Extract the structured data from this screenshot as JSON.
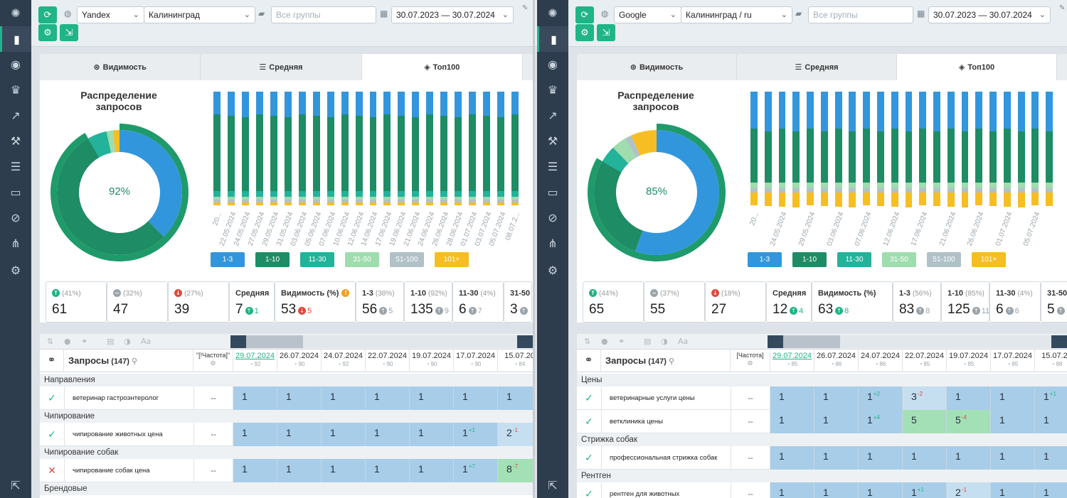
{
  "colors": {
    "c13": "#3296dc",
    "c110": "#1e8c64",
    "c1130": "#22b39a",
    "c3150": "#9fdcae",
    "c51100": "#b0c1c8",
    "c101": "#f6be22",
    "ring": "#1f9a6a"
  },
  "sidebar": {
    "icons": [
      "logo-icon",
      "chart-icon",
      "camera-icon",
      "trophy-icon",
      "trend-icon",
      "tools-icon",
      "list-icon",
      "inbox-icon",
      "satellite-icon",
      "sitemap-icon",
      "gear-icon",
      "export-icon"
    ]
  },
  "left": {
    "engine": "Yandex",
    "region": "Калининград",
    "groups_placeholder": "Все группы",
    "dates": "30.07.2023 — 30.07.2024",
    "tabs": [
      "Видимость",
      "Средняя",
      "Топ100"
    ],
    "donut_title": "Распределение запросов",
    "donut_pct": "92%",
    "legend": [
      "1-3",
      "1-10",
      "11-30",
      "31-50",
      "51-100",
      "101+"
    ],
    "chart_dates": [
      "20...",
      "22.05.2024",
      "24.05.2024",
      "27.05.2024",
      "29.05.2024",
      "31.05.2024",
      "03.06.2024",
      "05.06.2024",
      "07.06.2024",
      "10.06.2024",
      "12.06.2024",
      "14.06.2024",
      "17.06.2024",
      "19.06.2024",
      "21.06.2024",
      "24.06.2024",
      "26.06.2024",
      "28.06.2024",
      "01.07.2024",
      "03.07.2024",
      "05.07.2024",
      "08.07.2..."
    ],
    "stats": [
      {
        "label": "",
        "pct": "(41%)",
        "value": "61",
        "icon": "up"
      },
      {
        "label": "",
        "pct": "(32%)",
        "value": "47",
        "icon": "eq"
      },
      {
        "label": "",
        "pct": "(27%)",
        "value": "39",
        "icon": "down"
      },
      {
        "label": "Средняя",
        "pct": "",
        "value": "7",
        "delta": "1",
        "dir": "up"
      },
      {
        "label": "Видимость (%)",
        "pct": "",
        "value": "53",
        "delta": "5",
        "dir": "down",
        "warn": true
      },
      {
        "label": "1-3",
        "pct": "(38%)",
        "value": "56",
        "delta": "5",
        "dir": "gr"
      },
      {
        "label": "1-10",
        "pct": "(92%)",
        "value": "135",
        "delta": "9",
        "dir": "gr"
      },
      {
        "label": "11-30",
        "pct": "(4%)",
        "value": "6",
        "delta": "7",
        "dir": "gr"
      },
      {
        "label": "31-50",
        "pct": "",
        "value": "3",
        "delta": "",
        "dir": "gr"
      }
    ],
    "table": {
      "query_header": "Запросы",
      "query_count": "(147)",
      "freq_header": "\"[!Частота]\"",
      "dates": [
        "29.07.2024",
        "26.07.2024",
        "24.07.2024",
        "22.07.2024",
        "19.07.2024",
        "17.07.2024",
        "15.07.20"
      ],
      "vis": [
        "92",
        "90",
        "92",
        "90",
        "90",
        "90",
        "84"
      ],
      "groups": [
        {
          "name": "Направления",
          "rows": [
            {
              "kw": "ветеринар гастроэнтеролог",
              "ok": true,
              "freq": "--",
              "pos": [
                [
                  "1",
                  ""
                ],
                [
                  "1",
                  ""
                ],
                [
                  "1",
                  ""
                ],
                [
                  "1",
                  ""
                ],
                [
                  "1",
                  ""
                ],
                [
                  "1",
                  ""
                ],
                [
                  "1",
                  ""
                ]
              ]
            }
          ]
        },
        {
          "name": "Чипирование",
          "rows": [
            {
              "kw": "чипирование животных цена",
              "ok": true,
              "freq": "--",
              "pos": [
                [
                  "1",
                  ""
                ],
                [
                  "1",
                  ""
                ],
                [
                  "1",
                  ""
                ],
                [
                  "1",
                  ""
                ],
                [
                  "1",
                  ""
                ],
                [
                  "1",
                  "+1"
                ],
                [
                  "2",
                  "-1"
                ]
              ]
            }
          ]
        },
        {
          "name": "Чипирование собак",
          "rows": [
            {
              "kw": "чипирование собак цена",
              "ok": false,
              "freq": "--",
              "pos": [
                [
                  "1",
                  ""
                ],
                [
                  "1",
                  ""
                ],
                [
                  "1",
                  ""
                ],
                [
                  "1",
                  ""
                ],
                [
                  "1",
                  ""
                ],
                [
                  "1",
                  "+7"
                ],
                [
                  "8",
                  "-7"
                ]
              ]
            }
          ]
        },
        {
          "name": "Брендовые",
          "rows": []
        }
      ]
    }
  },
  "right": {
    "engine": "Google",
    "region": "Калининград / ru",
    "groups_placeholder": "Все группы",
    "dates": "30.07.2023 — 30.07.2024",
    "tabs": [
      "Видимость",
      "Средняя",
      "Топ100"
    ],
    "donut_title": "Распределение запросов",
    "donut_pct": "85%",
    "legend": [
      "1-3",
      "1-10",
      "11-30",
      "31-50",
      "51-100",
      "101+"
    ],
    "chart_dates": [
      "20...",
      "24.05.2024",
      "29.05.2024",
      "03.06.2024",
      "07.06.2024",
      "12.06.2024",
      "17.06.2024",
      "21.06.2024",
      "26.06.2024",
      "01.07.2024",
      "05.07.2024"
    ],
    "stats": [
      {
        "label": "",
        "pct": "(44%)",
        "value": "65",
        "icon": "up"
      },
      {
        "label": "",
        "pct": "(37%)",
        "value": "55",
        "icon": "eq"
      },
      {
        "label": "",
        "pct": "(18%)",
        "value": "27",
        "icon": "down"
      },
      {
        "label": "Средняя",
        "pct": "",
        "value": "12",
        "delta": "4",
        "dir": "up"
      },
      {
        "label": "Видимость (%)",
        "pct": "",
        "value": "63",
        "delta": "8",
        "dir": "up"
      },
      {
        "label": "1-3",
        "pct": "(56%)",
        "value": "83",
        "delta": "8",
        "dir": "gr"
      },
      {
        "label": "1-10",
        "pct": "(85%)",
        "value": "125",
        "delta": "11",
        "dir": "gr"
      },
      {
        "label": "11-30",
        "pct": "(4%)",
        "value": "6",
        "delta": "6",
        "dir": "gr"
      },
      {
        "label": "31-50",
        "pct": "",
        "value": "5",
        "delta": "",
        "dir": "gr"
      }
    ],
    "table": {
      "query_header": "Запросы",
      "query_count": "(147)",
      "freq_header": "[Частота]",
      "dates": [
        "29.07.2024",
        "26.07.2024",
        "24.07.2024",
        "22.07.2024",
        "19.07.2024",
        "17.07.2024",
        "15.07.20"
      ],
      "vis": [
        "85",
        "86",
        "86",
        "85",
        "85",
        "85",
        "88"
      ],
      "groups": [
        {
          "name": "Цены",
          "rows": [
            {
              "kw": "ветеринарные услуги цены",
              "ok": true,
              "freq": "--",
              "pos": [
                [
                  "1",
                  ""
                ],
                [
                  "1",
                  ""
                ],
                [
                  "1",
                  "+2"
                ],
                [
                  "3",
                  "-2"
                ],
                [
                  "1",
                  ""
                ],
                [
                  "1",
                  ""
                ],
                [
                  "1",
                  "+1"
                ]
              ]
            },
            {
              "kw": "ветклиника цены",
              "ok": true,
              "freq": "--",
              "pos": [
                [
                  "1",
                  ""
                ],
                [
                  "1",
                  ""
                ],
                [
                  "1",
                  "+4"
                ],
                [
                  "5",
                  ""
                ],
                [
                  "5",
                  "-4"
                ],
                [
                  "1",
                  ""
                ],
                [
                  "1",
                  ""
                ]
              ]
            }
          ]
        },
        {
          "name": "Стрижка собак",
          "rows": [
            {
              "kw": "профессиональная стрижка собак",
              "ok": true,
              "freq": "--",
              "pos": [
                [
                  "1",
                  ""
                ],
                [
                  "1",
                  ""
                ],
                [
                  "1",
                  ""
                ],
                [
                  "1",
                  ""
                ],
                [
                  "1",
                  ""
                ],
                [
                  "1",
                  ""
                ],
                [
                  "1",
                  ""
                ]
              ]
            }
          ]
        },
        {
          "name": "Рентген",
          "rows": [
            {
              "kw": "рентген для животных",
              "ok": true,
              "freq": "--",
              "pos": [
                [
                  "1",
                  ""
                ],
                [
                  "1",
                  ""
                ],
                [
                  "1",
                  ""
                ],
                [
                  "1",
                  "+1"
                ],
                [
                  "2",
                  "-1"
                ],
                [
                  "1",
                  ""
                ],
                [
                  "1",
                  ""
                ]
              ]
            }
          ]
        }
      ]
    }
  }
}
